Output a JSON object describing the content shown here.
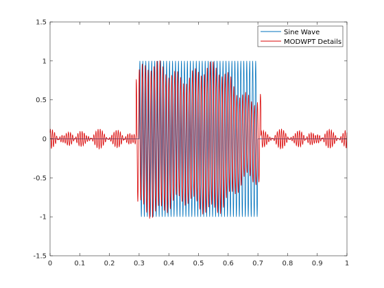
{
  "chart_data": {
    "type": "line",
    "title": "",
    "xlabel": "",
    "ylabel": "",
    "xlim": [
      0,
      1
    ],
    "ylim": [
      -1.5,
      1.5
    ],
    "xticks": [
      0,
      0.1,
      0.2,
      0.3,
      0.4,
      0.5,
      0.6,
      0.7,
      0.8,
      0.9,
      1
    ],
    "xtick_labels": [
      "0",
      "0.1",
      "0.2",
      "0.3",
      "0.4",
      "0.5",
      "0.6",
      "0.7",
      "0.8",
      "0.9",
      "1"
    ],
    "yticks": [
      -1.5,
      -1,
      -0.5,
      0,
      0.5,
      1,
      1.5
    ],
    "ytick_labels": [
      "-1.5",
      "-1",
      "-0.5",
      "0",
      "0.5",
      "1",
      "1.5"
    ],
    "grid": false,
    "legend_position": "top-right",
    "series": [
      {
        "name": "Sine Wave",
        "color": "#0072BD",
        "description_values": {
          "amplitude": 1,
          "start_x": 0.3,
          "end_x": 0.7,
          "cycles_in_burst": 40,
          "outside_value": 0
        }
      },
      {
        "name": "MODWPT Details",
        "color": "#D90000",
        "description_values": {
          "peak_amplitude": 1.1,
          "burst_start_x": 0.29,
          "burst_end_x": 0.71,
          "outside_amplitude": 0.13
        }
      }
    ]
  }
}
